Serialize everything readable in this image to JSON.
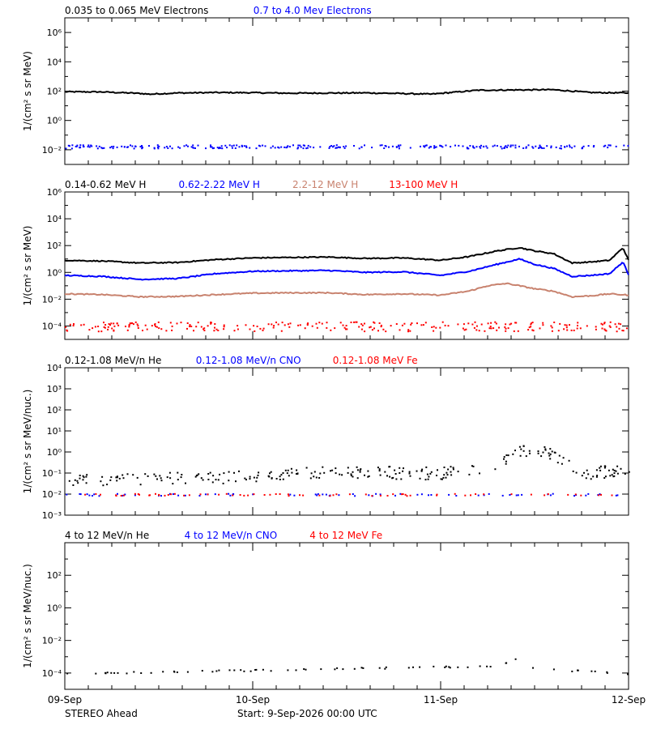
{
  "page": {
    "spacecraft": "STEREO Ahead",
    "start_text": "Start:  9-Sep-2026 00:00 UTC"
  },
  "chart_data": [
    {
      "type": "scatter",
      "id": "electrons",
      "y_scale": "log",
      "ylabel": "1/(cm² s sr MeV)",
      "ylim": [
        0.001,
        10000000
      ],
      "yticks": [
        {
          "v": 0.01,
          "label": "10⁻²"
        },
        {
          "v": 1,
          "label": "10⁰"
        },
        {
          "v": 100,
          "label": "10²"
        },
        {
          "v": 10000,
          "label": "10⁴"
        },
        {
          "v": 1000000,
          "label": "10⁶"
        }
      ],
      "legend": [
        {
          "text": "0.035 to 0.065 MeV Electrons",
          "color": "#000000"
        },
        {
          "text": "0.7 to 4.0 Mev Electrons",
          "color": "#0000ff"
        }
      ],
      "series": [
        {
          "name": "0.035 to 0.065 MeV Electrons",
          "color": "#000000",
          "style": "line",
          "x": [
            0,
            0.2,
            0.4,
            0.45,
            0.6,
            0.8,
            1.0,
            1.2,
            1.4,
            1.6,
            1.8,
            1.95,
            2.1,
            2.2,
            2.4,
            2.6,
            2.8,
            3.0
          ],
          "y": [
            90,
            88,
            70,
            62,
            75,
            80,
            78,
            72,
            74,
            76,
            68,
            62,
            90,
            115,
            120,
            125,
            80,
            75
          ]
        },
        {
          "name": "0.7 to 4.0 Mev Electrons",
          "color": "#0000ff",
          "style": "dots",
          "x": [
            0,
            3.0
          ],
          "y": [
            0.018,
            0.018
          ],
          "spread": 0.12
        }
      ]
    },
    {
      "type": "scatter",
      "id": "protons",
      "y_scale": "log",
      "ylabel": "1/(cm² s sr MeV)",
      "ylim": [
        1e-05,
        1000000
      ],
      "yticks": [
        {
          "v": 0.0001,
          "label": "10⁻⁴"
        },
        {
          "v": 0.01,
          "label": "10⁻²"
        },
        {
          "v": 1,
          "label": "10⁰"
        },
        {
          "v": 100,
          "label": "10²"
        },
        {
          "v": 10000,
          "label": "10⁴"
        },
        {
          "v": 1000000,
          "label": "10⁶"
        }
      ],
      "legend": [
        {
          "text": "0.14-0.62 MeV H",
          "color": "#000000"
        },
        {
          "text": "0.62-2.22 MeV H",
          "color": "#0000ff"
        },
        {
          "text": "2.2-12 MeV H",
          "color": "#c8826e"
        },
        {
          "text": "13-100 MeV H",
          "color": "#ff0000"
        }
      ],
      "series": [
        {
          "name": "0.14-0.62 MeV H",
          "color": "#000000",
          "style": "line",
          "x": [
            0,
            0.2,
            0.4,
            0.6,
            0.8,
            1.0,
            1.2,
            1.4,
            1.6,
            1.8,
            2.0,
            2.15,
            2.3,
            2.42,
            2.5,
            2.6,
            2.7,
            2.8,
            2.9,
            2.97,
            3.0
          ],
          "y": [
            8,
            7,
            5,
            5.5,
            9,
            12,
            13,
            14,
            11,
            12,
            8,
            15,
            40,
            70,
            40,
            25,
            5,
            6,
            8,
            70,
            8
          ]
        },
        {
          "name": "0.62-2.22 MeV H",
          "color": "#0000ff",
          "style": "line",
          "x": [
            0,
            0.2,
            0.4,
            0.6,
            0.8,
            1.0,
            1.2,
            1.4,
            1.6,
            1.8,
            2.0,
            2.15,
            2.3,
            2.42,
            2.5,
            2.6,
            2.7,
            2.8,
            2.9,
            2.97,
            3.0
          ],
          "y": [
            0.6,
            0.5,
            0.3,
            0.35,
            0.8,
            1.2,
            1.3,
            1.4,
            1.0,
            1.1,
            0.6,
            1.2,
            4,
            10,
            4,
            2,
            0.5,
            0.6,
            0.8,
            6,
            0.7
          ]
        },
        {
          "name": "2.2-12 MeV H",
          "color": "#c8826e",
          "style": "line",
          "x": [
            0,
            0.2,
            0.4,
            0.6,
            0.8,
            1.0,
            1.2,
            1.4,
            1.6,
            1.8,
            2.0,
            2.15,
            2.25,
            2.35,
            2.42,
            2.5,
            2.6,
            2.7,
            2.8,
            2.9,
            3.0
          ],
          "y": [
            0.025,
            0.022,
            0.015,
            0.016,
            0.022,
            0.028,
            0.03,
            0.03,
            0.022,
            0.025,
            0.02,
            0.04,
            0.1,
            0.15,
            0.1,
            0.06,
            0.04,
            0.015,
            0.018,
            0.025,
            0.02
          ]
        },
        {
          "name": "13-100 MeV H",
          "color": "#ff0000",
          "style": "dots",
          "x": [
            0,
            3.0
          ],
          "y": [
            0.0001,
            0.0001
          ],
          "spread": 0.35
        }
      ]
    },
    {
      "type": "scatter",
      "id": "low-energy-ions",
      "y_scale": "log",
      "ylabel": "1/(cm² s sr MeV/nuc.)",
      "ylim": [
        0.001,
        10000
      ],
      "yticks": [
        {
          "v": 0.001,
          "label": "10⁻³"
        },
        {
          "v": 0.01,
          "label": "10⁻²"
        },
        {
          "v": 0.1,
          "label": "10⁻¹"
        },
        {
          "v": 1,
          "label": "10⁰"
        },
        {
          "v": 10,
          "label": "10¹"
        },
        {
          "v": 100,
          "label": "10²"
        },
        {
          "v": 1000,
          "label": "10³"
        },
        {
          "v": 10000,
          "label": "10⁴"
        }
      ],
      "legend": [
        {
          "text": "0.12-1.08 MeV/n He",
          "color": "#000000"
        },
        {
          "text": "0.12-1.08 MeV/n CNO",
          "color": "#0000ff"
        },
        {
          "text": "0.12-1.08 MeV Fe",
          "color": "#ff0000"
        }
      ],
      "series": [
        {
          "name": "0.12-1.08 MeV/n He",
          "color": "#000000",
          "style": "dots",
          "x": [
            0,
            0.8,
            1.2,
            1.6,
            2.0,
            2.3,
            2.42,
            2.55,
            2.65,
            2.8,
            3.0
          ],
          "y": [
            0.05,
            0.06,
            0.1,
            0.12,
            0.1,
            0.3,
            1.2,
            1.3,
            0.3,
            0.1,
            0.2
          ],
          "spread": 0.3
        },
        {
          "name": "0.12-1.08 MeV/n CNO",
          "color": "#0000ff",
          "style": "sparse",
          "x": [
            0,
            3.0
          ],
          "y": [
            0.01,
            0.01
          ]
        },
        {
          "name": "0.12-1.08 MeV Fe",
          "color": "#ff0000",
          "style": "sparse",
          "x": [
            0,
            3.0
          ],
          "y": [
            0.01,
            0.01
          ]
        }
      ]
    },
    {
      "type": "scatter",
      "id": "high-energy-ions",
      "y_scale": "log",
      "ylabel": "1/(cm² s sr MeV/nuc.)",
      "ylim": [
        1e-05,
        10000
      ],
      "yticks": [
        {
          "v": 0.0001,
          "label": "10⁻⁴"
        },
        {
          "v": 0.01,
          "label": "10⁻²"
        },
        {
          "v": 1,
          "label": "10⁰"
        },
        {
          "v": 100,
          "label": "10²"
        }
      ],
      "legend": [
        {
          "text": "4 to 12 MeV/n He",
          "color": "#000000"
        },
        {
          "text": "4 to 12 MeV/n CNO",
          "color": "#0000ff"
        },
        {
          "text": "4 to 12 MeV Fe",
          "color": "#ff0000"
        }
      ],
      "series": [
        {
          "name": "4 to 12 MeV/n He",
          "color": "#000000",
          "style": "sparse",
          "x": [
            0,
            2.3,
            2.4,
            2.5,
            3.0
          ],
          "y": [
            0.0001,
            0.0003,
            0.0008,
            0.0002,
            0.0001
          ]
        },
        {
          "name": "4 to 12 MeV/n CNO",
          "color": "#0000ff",
          "style": "none",
          "x": [],
          "y": []
        },
        {
          "name": "4 to 12 MeV Fe",
          "color": "#ff0000",
          "style": "none",
          "x": [],
          "y": []
        }
      ]
    }
  ],
  "x_axis": {
    "units": "days",
    "xlim": [
      0,
      3
    ],
    "ticks": [
      {
        "v": 0,
        "label": "09-Sep"
      },
      {
        "v": 1,
        "label": "10-Sep"
      },
      {
        "v": 2,
        "label": "11-Sep"
      },
      {
        "v": 3,
        "label": "12-Sep"
      }
    ]
  }
}
